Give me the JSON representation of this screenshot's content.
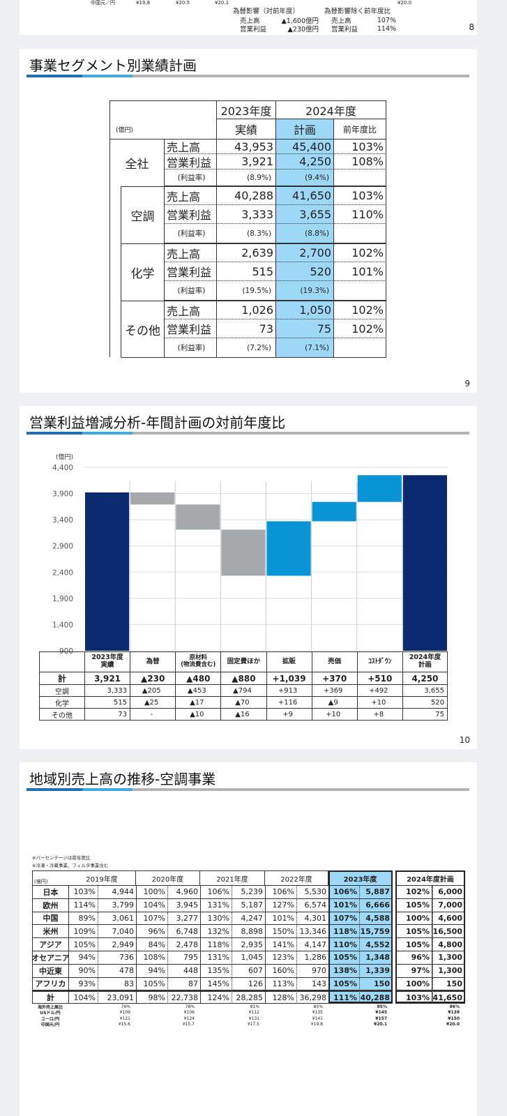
{
  "page8": {
    "fx_row": [
      "中国元／円",
      "¥19.8",
      "¥20.5",
      "¥20.1",
      "¥20.0"
    ],
    "fx_impact_title": "為替影響（対前年度）",
    "ex_fx_title": "為替影響除く前年度比",
    "fx_impact": [
      [
        "売上高",
        "▲1,600億円"
      ],
      [
        "営業利益",
        "▲230億円"
      ]
    ],
    "ex_fx": [
      [
        "売上高",
        "107%"
      ],
      [
        "営業利益",
        "114%"
      ]
    ],
    "page_number": "8"
  },
  "segment_slide": {
    "title": "事業セグメント別業績計画",
    "unit": "(億円)",
    "years": [
      "2023年度",
      "2024年度"
    ],
    "columns": [
      "実績",
      "計画",
      "前年度比"
    ],
    "segments": [
      {
        "name": "全社",
        "rows": [
          [
            "売上高",
            "43,953",
            "45,400",
            "103%"
          ],
          [
            "営業利益",
            "3,921",
            "4,250",
            "108%"
          ],
          [
            "(利益率)",
            "(8.9%)",
            "(9.4%)"
          ]
        ]
      },
      {
        "name": "空調",
        "rows": [
          [
            "売上高",
            "40,288",
            "41,650",
            "103%"
          ],
          [
            "営業利益",
            "3,333",
            "3,655",
            "110%"
          ],
          [
            "(利益率)",
            "(8.3%)",
            "(8.8%)"
          ]
        ]
      },
      {
        "name": "化学",
        "rows": [
          [
            "売上高",
            "2,639",
            "2,700",
            "102%"
          ],
          [
            "営業利益",
            "515",
            "520",
            "101%"
          ],
          [
            "(利益率)",
            "(19.5%)",
            "(19.3%)"
          ]
        ]
      },
      {
        "name": "その他",
        "rows": [
          [
            "売上高",
            "1,026",
            "1,050",
            "102%"
          ],
          [
            "営業利益",
            "73",
            "75",
            "102%"
          ],
          [
            "(利益率)",
            "(7.2%)",
            "(7.1%)"
          ]
        ]
      }
    ],
    "page_number": "9"
  },
  "chart_data": {
    "type": "waterfall",
    "title": "営業利益増減分析-年間計画の対前年度比",
    "y_unit": "(億円)",
    "categories": [
      "2023年度\n実績",
      "為替",
      "原材料\n(物流費含む)",
      "固定費ほか",
      "拡販",
      "売価",
      "ｺｽﾄﾀﾞｳﾝ",
      "2024年度\n計画"
    ],
    "values": [
      3921,
      -230,
      -480,
      -880,
      1039,
      370,
      510,
      4250
    ],
    "value_labels": [
      "3,921",
      "▲230",
      "▲480",
      "▲880",
      "+1,039",
      "+370",
      "+510",
      "4,250"
    ],
    "colors": [
      "#0b2a6f",
      "#a6a9ab",
      "#a6a9ab",
      "#a6a9ab",
      "#0a94d8",
      "#0a94d8",
      "#0a94d8",
      "#0b2a6f"
    ],
    "ylim": [
      900,
      4400
    ],
    "yticks": [
      900,
      {
        "value": 1400,
        "label": "1,400"
      },
      {
        "value": 1900,
        "label": "1,900"
      },
      {
        "value": 2400,
        "label": "2,400"
      },
      {
        "value": 2900,
        "label": "2,900"
      },
      {
        "value": 3400,
        "label": "3,400"
      },
      {
        "value": 3900,
        "label": "3,900"
      },
      {
        "value": 4400,
        "label": "4,400"
      }
    ],
    "grid": true,
    "table": {
      "total_label": "計",
      "rows": [
        {
          "label": "空調",
          "values": [
            "3,333",
            "▲205",
            "▲453",
            "▲794",
            "+913",
            "+369",
            "+492",
            "3,655"
          ]
        },
        {
          "label": "化学",
          "values": [
            "515",
            "▲25",
            "▲17",
            "▲70",
            "+116",
            "▲9",
            "+10",
            "520"
          ]
        },
        {
          "label": "その他",
          "values": [
            "73",
            "-",
            "▲10",
            "▲16",
            "+9",
            "+10",
            "+8",
            "75"
          ]
        }
      ]
    },
    "page_number": "10"
  },
  "region_slide": {
    "title": "地域別売上高の推移-空調事業",
    "notes": [
      "※パーセンテージは前年度比",
      "※冷凍・冷蔵事業、フィルタ事業含む"
    ],
    "unit": "(億円)",
    "years": [
      "2019年度",
      "2020年度",
      "2021年度",
      "2022年度",
      "2023年度",
      "2024年度計画"
    ],
    "rows": [
      {
        "label": "日本",
        "values": [
          "103%",
          "4,944",
          "100%",
          "4,960",
          "106%",
          "5,239",
          "106%",
          "5,530",
          "106%",
          "5,887",
          "102%",
          "6,000"
        ]
      },
      {
        "label": "欧州",
        "values": [
          "114%",
          "3,799",
          "104%",
          "3,945",
          "131%",
          "5,187",
          "127%",
          "6,574",
          "101%",
          "6,666",
          "105%",
          "7,000"
        ]
      },
      {
        "label": "中国",
        "values": [
          "89%",
          "3,061",
          "107%",
          "3,277",
          "130%",
          "4,247",
          "101%",
          "4,301",
          "107%",
          "4,588",
          "100%",
          "4,600"
        ]
      },
      {
        "label": "米州",
        "values": [
          "109%",
          "7,040",
          "96%",
          "6,748",
          "132%",
          "8,898",
          "150%",
          "13,346",
          "118%",
          "15,759",
          "105%",
          "16,500"
        ]
      },
      {
        "label": "アジア",
        "values": [
          "105%",
          "2,949",
          "84%",
          "2,478",
          "118%",
          "2,935",
          "141%",
          "4,147",
          "110%",
          "4,552",
          "105%",
          "4,800"
        ]
      },
      {
        "label": "オセアニア",
        "values": [
          "94%",
          "736",
          "108%",
          "795",
          "131%",
          "1,045",
          "123%",
          "1,286",
          "105%",
          "1,348",
          "96%",
          "1,300"
        ]
      },
      {
        "label": "中近東",
        "values": [
          "90%",
          "478",
          "94%",
          "448",
          "135%",
          "607",
          "160%",
          "970",
          "138%",
          "1,339",
          "97%",
          "1,300"
        ]
      },
      {
        "label": "アフリカ",
        "values": [
          "93%",
          "83",
          "105%",
          "87",
          "145%",
          "126",
          "113%",
          "143",
          "105%",
          "150",
          "100%",
          "150"
        ]
      },
      {
        "label": "計",
        "values": [
          "104%",
          "23,091",
          "98%",
          "22,738",
          "124%",
          "28,285",
          "128%",
          "36,298",
          "111%",
          "40,288",
          "103%",
          "41,650"
        ]
      }
    ],
    "footer_rows": [
      {
        "label": "海外売上高比",
        "values": [
          "79%",
          "78%",
          "81%",
          "85%",
          "85%",
          "86%"
        ]
      },
      {
        "label": "USドル/円",
        "values": [
          "¥109",
          "¥106",
          "¥112",
          "¥135",
          "¥145",
          "¥138"
        ]
      },
      {
        "label": "ユーロ/円",
        "values": [
          "¥121",
          "¥124",
          "¥131",
          "¥141",
          "¥157",
          "¥150"
        ]
      },
      {
        "label": "中国元/円",
        "values": [
          "¥15.6",
          "¥15.7",
          "¥17.5",
          "¥19.8",
          "¥20.1",
          "¥20.0"
        ]
      }
    ]
  }
}
